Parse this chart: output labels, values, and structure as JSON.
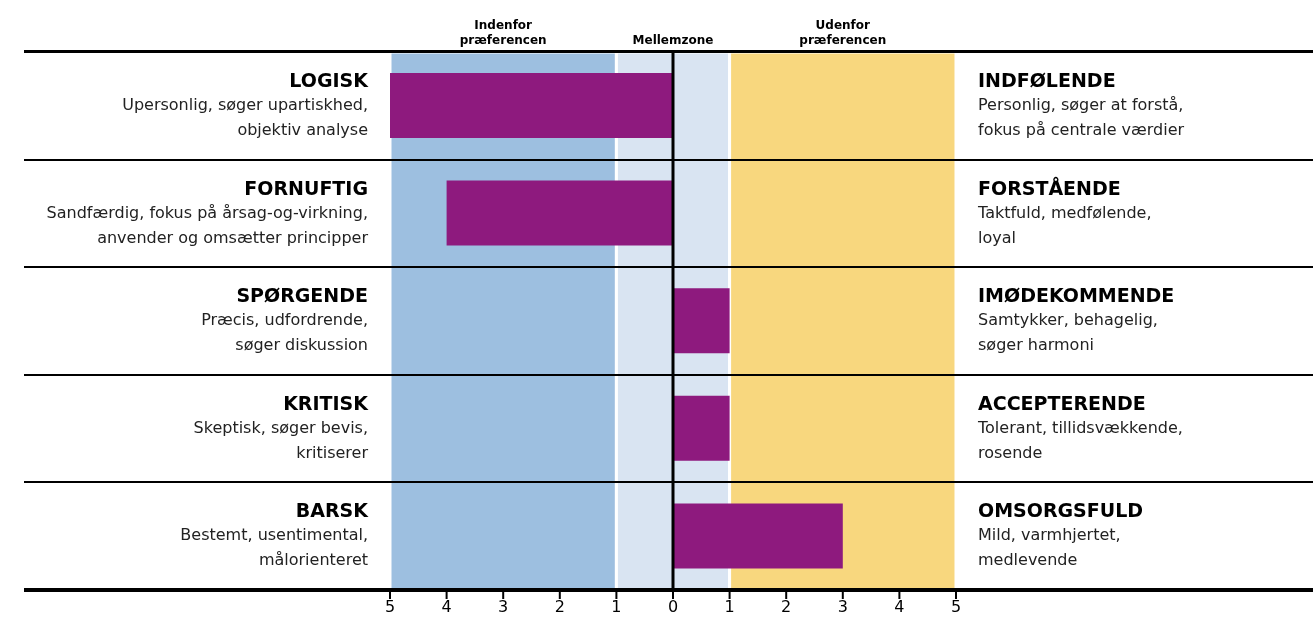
{
  "chart_data": {
    "type": "bar",
    "orientation": "horizontal",
    "categories": [
      "LOGISK",
      "FORNUFTIG",
      "SPØRGENDE",
      "KRITISK",
      "BARSK"
    ],
    "values": [
      -5,
      -4,
      1,
      1,
      3
    ],
    "color": "#8e1a7e",
    "xlim": [
      -5,
      5
    ],
    "xticks": [
      {
        "value": -5,
        "label": "5"
      },
      {
        "value": -4,
        "label": "4"
      },
      {
        "value": -3,
        "label": "3"
      },
      {
        "value": -2,
        "label": "2"
      },
      {
        "value": -1,
        "label": "1"
      },
      {
        "value": 0,
        "label": "0"
      },
      {
        "value": 1,
        "label": "1"
      },
      {
        "value": 2,
        "label": "2"
      },
      {
        "value": 3,
        "label": "3"
      },
      {
        "value": 4,
        "label": "4"
      },
      {
        "value": 5,
        "label": "5"
      }
    ],
    "bands": [
      {
        "axis": "x",
        "from": -5,
        "to": -1,
        "label": "Indenfor\npræferencen",
        "color": "#9dbfe0"
      },
      {
        "axis": "x",
        "from": -1,
        "to": 1,
        "label": "Mellemzone",
        "color": "#d9e4f2"
      },
      {
        "axis": "x",
        "from": 1,
        "to": 5,
        "label": "Udenfor\npræferencen",
        "color": "#f8d77e"
      }
    ],
    "ref_lines": [
      {
        "axis": "x",
        "value": 0,
        "color": "#000000"
      }
    ],
    "annotations": [
      "Upersonlig, søger upartiskhed,\nobjektiv analyse",
      "INDFØLENDE",
      "Personlig, søger at forstå,\nfokus på centrale værdier",
      "Sandfærdig, fokus på årsag-og-virkning,\nanvender og omsætter principper",
      "FORSTÅENDE",
      "Taktfuld, medfølende,\nloyal",
      "Præcis, udfordrende,\nsøger diskussion",
      "IMØDEKOMMENDE",
      "Samtykker, behagelig,\nsøger harmoni",
      "Skeptisk, søger bevis,\nkritiserer",
      "ACCEPTERENDE",
      "Tolerant, tillidsvækkende,\nrosende",
      "Bestemt, usentimental,\nmålorienteret",
      "OMSORGSFULD",
      "Mild, varmhjertet,\nmedlevende"
    ]
  }
}
